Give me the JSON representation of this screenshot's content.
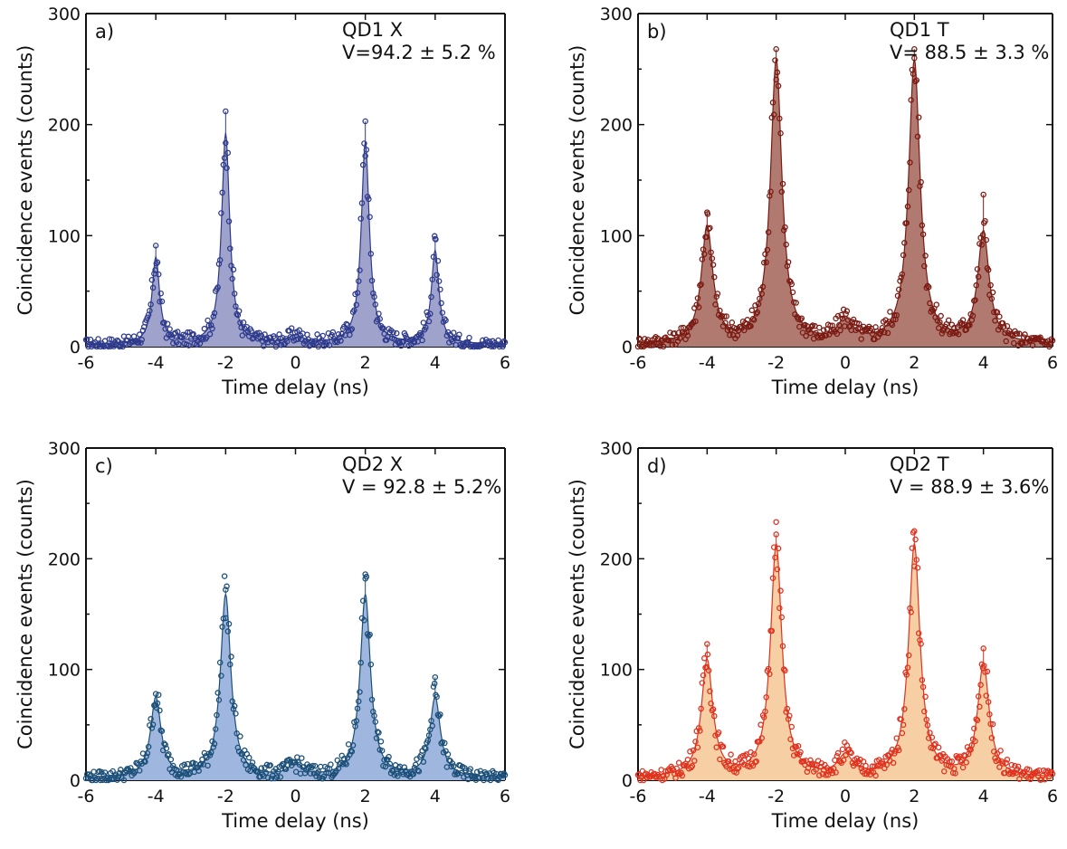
{
  "chart_data": [
    {
      "type": "scatter",
      "panel_label": "a)",
      "annotation_title": "QD1 X",
      "annotation_visibility": "V=94.2 ± 5.2 %",
      "xlabel": "Time delay (ns)",
      "ylabel": "Coincidence events (counts)",
      "xlim": [
        -6,
        6
      ],
      "ylim": [
        0,
        300
      ],
      "xticks": [
        -6,
        -4,
        -2,
        0,
        2,
        4,
        6
      ],
      "yticks": [
        0,
        100,
        200,
        300
      ],
      "color": "#2e3a8c",
      "fill_color": "#9fa3cc",
      "peaks": [
        {
          "center": -4,
          "height": 78,
          "width": 0.13
        },
        {
          "center": -2,
          "height": 190,
          "width": 0.14
        },
        {
          "center": 0,
          "height": 7,
          "width": 0.25
        },
        {
          "center": 2,
          "height": 182,
          "width": 0.14
        },
        {
          "center": 4,
          "height": 84,
          "width": 0.13
        }
      ],
      "baseline": 2,
      "max_points": [
        {
          "x": -4.0,
          "y": 91
        },
        {
          "x": -2.0,
          "y": 212
        },
        {
          "x": 2.0,
          "y": 203
        },
        {
          "x": 4.0,
          "y": 97
        }
      ]
    },
    {
      "type": "scatter",
      "panel_label": "b)",
      "annotation_title": "QD1 T",
      "annotation_visibility": "V= 88.5 ± 3.3 %",
      "xlabel": "Time delay (ns)",
      "ylabel": "Coincidence events (counts)",
      "xlim": [
        -6,
        6
      ],
      "ylim": [
        0,
        300
      ],
      "xticks": [
        -6,
        -4,
        -2,
        0,
        2,
        4,
        6
      ],
      "yticks": [
        0,
        100,
        200,
        300
      ],
      "color": "#7a1a12",
      "fill_color": "#b07a70",
      "peaks": [
        {
          "center": -4,
          "height": 105,
          "width": 0.2
        },
        {
          "center": -2,
          "height": 255,
          "width": 0.2
        },
        {
          "center": 0,
          "height": 20,
          "width": 0.25
        },
        {
          "center": 2,
          "height": 255,
          "width": 0.2
        },
        {
          "center": 4,
          "height": 100,
          "width": 0.2
        }
      ],
      "baseline": 2,
      "max_points": [
        {
          "x": -4.0,
          "y": 121
        },
        {
          "x": -2.0,
          "y": 268
        },
        {
          "x": 2.0,
          "y": 268
        },
        {
          "x": 4.0,
          "y": 137
        }
      ]
    },
    {
      "type": "scatter",
      "panel_label": "c)",
      "annotation_title": "QD2 X",
      "annotation_visibility": "V = 92.8 ± 5.2%",
      "xlabel": "Time delay (ns)",
      "ylabel": "Coincidence events (counts)",
      "xlim": [
        -6,
        6
      ],
      "ylim": [
        0,
        300
      ],
      "xticks": [
        -6,
        -4,
        -2,
        0,
        2,
        4,
        6
      ],
      "yticks": [
        0,
        100,
        200,
        300
      ],
      "color": "#1c4f78",
      "fill_color": "#9fb7de",
      "peaks": [
        {
          "center": -4,
          "height": 72,
          "width": 0.18
        },
        {
          "center": -2,
          "height": 165,
          "width": 0.18
        },
        {
          "center": 0,
          "height": 11,
          "width": 0.25
        },
        {
          "center": 2,
          "height": 165,
          "width": 0.18
        },
        {
          "center": 4,
          "height": 72,
          "width": 0.18
        }
      ],
      "baseline": 2,
      "max_points": [
        {
          "x": -4.0,
          "y": 78
        },
        {
          "x": -2.0,
          "y": 172
        },
        {
          "x": 2.0,
          "y": 186
        },
        {
          "x": 4.0,
          "y": 93
        }
      ]
    },
    {
      "type": "scatter",
      "panel_label": "d)",
      "annotation_title": "QD2 T",
      "annotation_visibility": "V = 88.9 ± 3.6%",
      "xlabel": "Time delay (ns)",
      "ylabel": "Coincidence events (counts)",
      "xlim": [
        -6,
        6
      ],
      "ylim": [
        0,
        300
      ],
      "xticks": [
        -6,
        -4,
        -2,
        0,
        2,
        4,
        6
      ],
      "yticks": [
        0,
        100,
        200,
        300
      ],
      "color": "#e0321e",
      "fill_color": "#f6cfa4",
      "peaks": [
        {
          "center": -4,
          "height": 105,
          "width": 0.2
        },
        {
          "center": -2,
          "height": 210,
          "width": 0.2
        },
        {
          "center": 0,
          "height": 18,
          "width": 0.25
        },
        {
          "center": 2,
          "height": 210,
          "width": 0.2
        },
        {
          "center": 4,
          "height": 102,
          "width": 0.2
        }
      ],
      "baseline": 2,
      "max_points": [
        {
          "x": -4.0,
          "y": 123
        },
        {
          "x": -2.0,
          "y": 222
        },
        {
          "x": 2.0,
          "y": 225
        },
        {
          "x": 4.0,
          "y": 119
        }
      ]
    }
  ]
}
